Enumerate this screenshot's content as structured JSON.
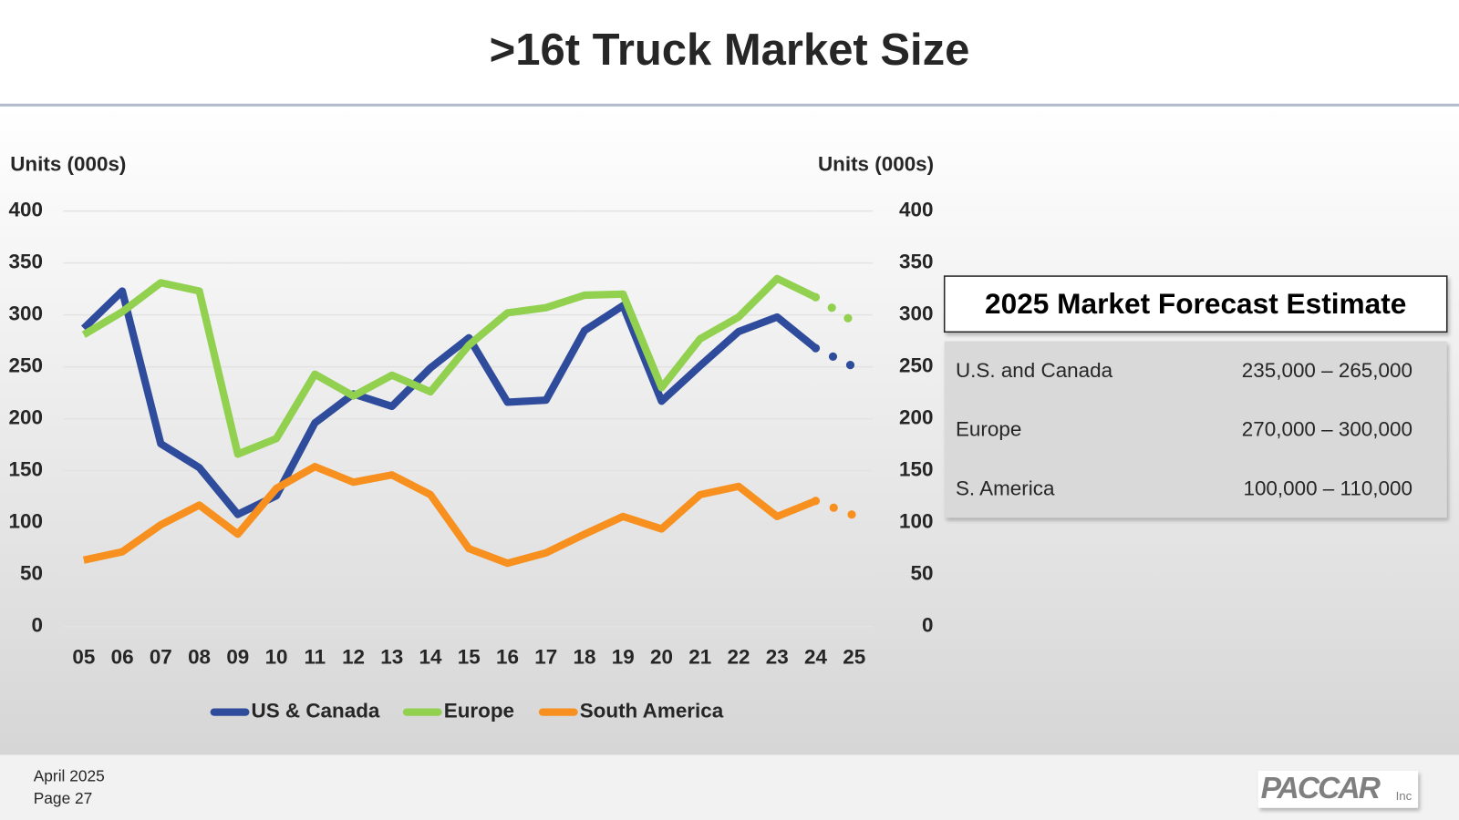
{
  "chart_data": {
    "type": "line",
    "title": ">16t Truck Market Size",
    "ylabel": "Units (000s)",
    "y2label": "Units (000s)",
    "categories": [
      "05",
      "06",
      "07",
      "08",
      "09",
      "10",
      "11",
      "12",
      "13",
      "14",
      "15",
      "16",
      "17",
      "18",
      "19",
      "20",
      "21",
      "22",
      "23",
      "24",
      "25"
    ],
    "series": [
      {
        "name": "US & Canada",
        "color": "#2f4b9b",
        "values": [
          287,
          323,
          176,
          153,
          108,
          126,
          196,
          224,
          212,
          249,
          278,
          216,
          218,
          285,
          309,
          217,
          251,
          284,
          298,
          268,
          250
        ]
      },
      {
        "name": "Europe",
        "color": "#92d050",
        "values": [
          281,
          303,
          331,
          323,
          166,
          181,
          243,
          222,
          242,
          226,
          271,
          302,
          307,
          319,
          320,
          230,
          277,
          298,
          335,
          317,
          293
        ]
      },
      {
        "name": "South America",
        "color": "#f7901e",
        "values": [
          64,
          72,
          98,
          117,
          89,
          133,
          154,
          139,
          146,
          127,
          75,
          61,
          71,
          89,
          106,
          94,
          127,
          135,
          106,
          121,
          107
        ]
      }
    ],
    "forecast_index": 20,
    "ylim": [
      0,
      400
    ],
    "yticks": [
      0,
      50,
      100,
      150,
      200,
      250,
      300,
      350,
      400
    ],
    "y2lim": [
      0,
      400
    ],
    "y2ticks": [
      0,
      50,
      100,
      150,
      200,
      250,
      300,
      350,
      400
    ],
    "grid": true,
    "legend": "bottom"
  },
  "forecast": {
    "title": "2025 Market Forecast Estimate",
    "rows": [
      [
        "U.S. and Canada",
        "235,000 – 265,000"
      ],
      [
        "Europe",
        "270,000 – 300,000"
      ],
      [
        "S. America",
        "100,000 – 110,000"
      ]
    ]
  },
  "footer": {
    "date": "April 2025",
    "page": "Page 27",
    "logo": "PACCAR",
    "logo_suffix": "Inc"
  }
}
